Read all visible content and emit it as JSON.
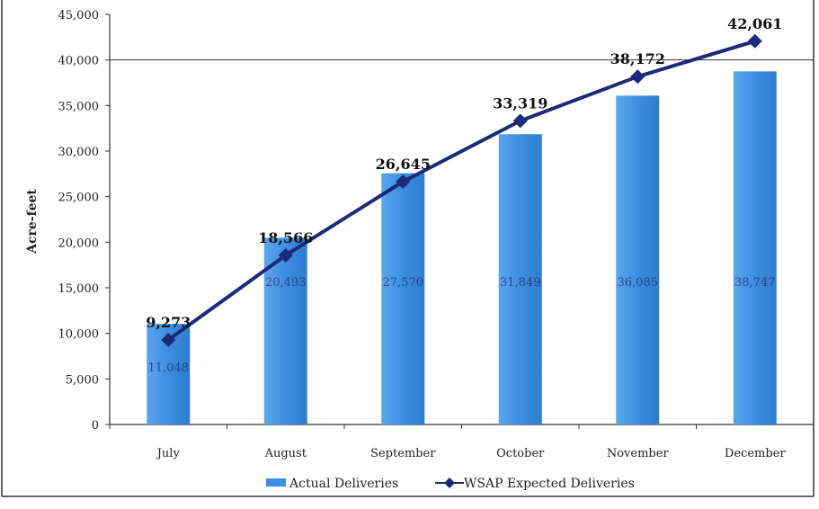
{
  "chart_data": {
    "type": "bar",
    "categories": [
      "July",
      "August",
      "September",
      "October",
      "November",
      "December"
    ],
    "ylabel": "Acre-feet",
    "ylim": [
      0,
      45000
    ],
    "yticks": [
      0,
      5000,
      10000,
      15000,
      20000,
      25000,
      30000,
      35000,
      40000,
      45000
    ],
    "ytick_labels": [
      "0",
      "5,000",
      "10,000",
      "15,000",
      "20,000",
      "25,000",
      "30,000",
      "35,000",
      "40,000",
      "45,000"
    ],
    "legend_position": "bottom",
    "series": [
      {
        "name": "Actual Deliveries",
        "type": "bar",
        "values": [
          11048,
          20493,
          27570,
          31849,
          36085,
          38747
        ],
        "labels": [
          "11,048",
          "20,493",
          "27,570",
          "31,849",
          "36,085",
          "38,747"
        ],
        "color": "#3d8ee0"
      },
      {
        "name": "WSAP Expected Deliveries",
        "type": "line",
        "values": [
          9273,
          18566,
          26645,
          33319,
          38172,
          42061
        ],
        "labels": [
          "9,273",
          "18,566",
          "26,645",
          "33,319",
          "38,172",
          "42,061"
        ],
        "color": "#1c2a78"
      }
    ]
  }
}
